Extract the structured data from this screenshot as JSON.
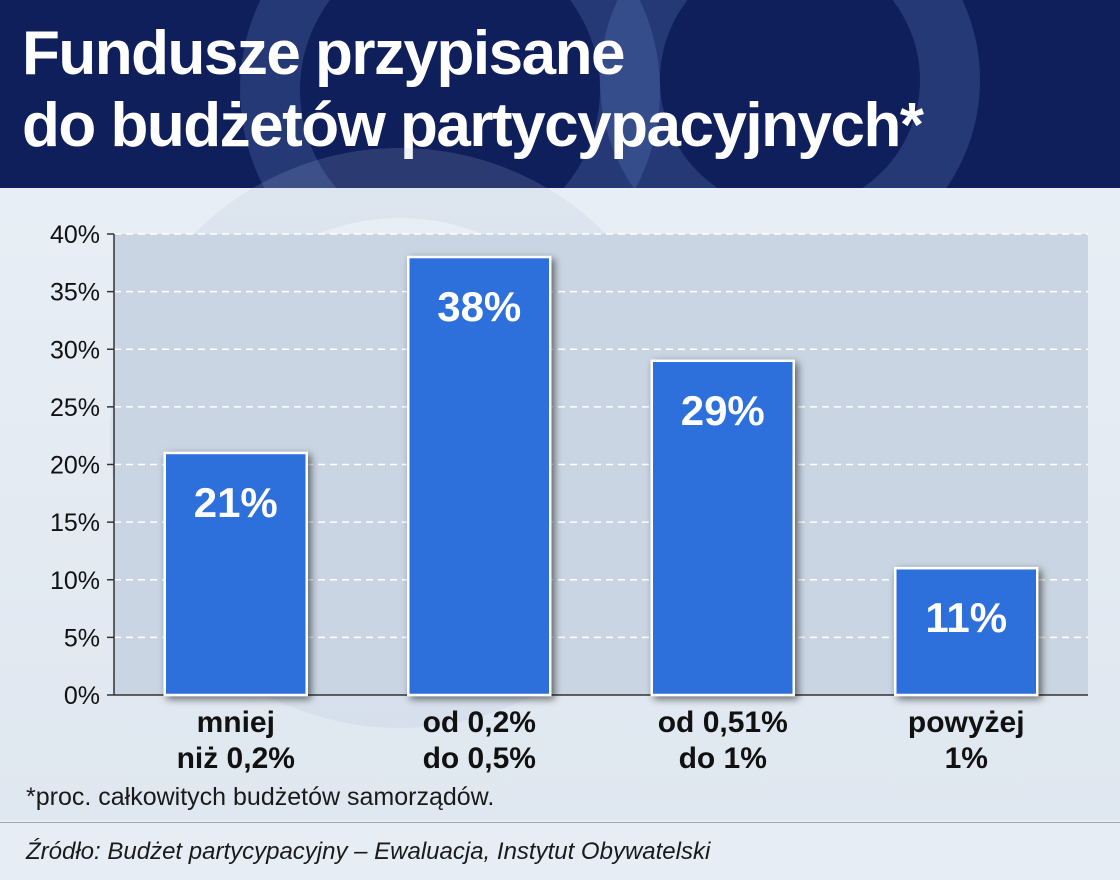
{
  "header": {
    "title_line1": "Fundusze przypisane",
    "title_line2": "do budżetów partycypacyjnych*"
  },
  "chart_data": {
    "type": "bar",
    "categories": [
      [
        "mniej",
        "niż 0,2%"
      ],
      [
        "od 0,2%",
        "do 0,5%"
      ],
      [
        "od 0,51%",
        "do 1%"
      ],
      [
        "powyżej",
        "1%"
      ]
    ],
    "values": [
      21,
      38,
      29,
      11
    ],
    "value_labels": [
      "21%",
      "38%",
      "29%",
      "11%"
    ],
    "ylim": [
      0,
      40
    ],
    "yticks": [
      "0%",
      "5%",
      "10%",
      "15%",
      "20%",
      "25%",
      "30%",
      "35%",
      "40%"
    ],
    "grid": true,
    "bar_color": "#2f6fdb",
    "plot_bg": "#c9d5e2"
  },
  "footnote": "*proc. całkowitych budżetów samorządów.",
  "source": "Źródło: Budżet partycypacyjny – Ewaluacja, Instytut Obywatelski"
}
